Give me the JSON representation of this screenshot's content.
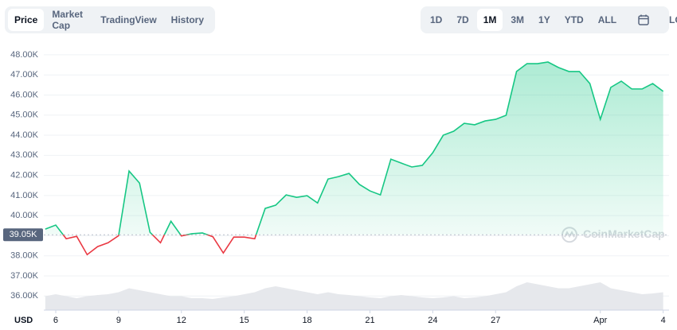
{
  "tabs": [
    "Price",
    "Market Cap",
    "TradingView",
    "History"
  ],
  "ranges": [
    "1D",
    "7D",
    "1M",
    "3M",
    "1Y",
    "YTD",
    "ALL"
  ],
  "scale_toggle": "LOG",
  "chart_data": {
    "type": "line",
    "currency": "USD",
    "watermark": "CoinMarketCap",
    "x": [
      5.5,
      6,
      6.5,
      7,
      7.5,
      8,
      8.5,
      9,
      9.5,
      10,
      10.5,
      11,
      11.5,
      12,
      12.5,
      13,
      13.5,
      14,
      14.5,
      15,
      15.5,
      16,
      16.5,
      17,
      17.5,
      18,
      18.5,
      19,
      19.5,
      20,
      20.5,
      21,
      21.5,
      22,
      22.5,
      23,
      23.5,
      24,
      24.5,
      25,
      25.5,
      26,
      26.5,
      27,
      27.5,
      28,
      28.5,
      29,
      29.5,
      30,
      30.5,
      31,
      31.5,
      32,
      32.5,
      33,
      33.5,
      34,
      34.5,
      35
    ],
    "values": [
      39330,
      39530,
      38850,
      38970,
      38060,
      38460,
      38650,
      39000,
      42220,
      41620,
      39170,
      38650,
      39720,
      38990,
      39100,
      39140,
      38950,
      38140,
      38930,
      38930,
      38850,
      40360,
      40520,
      41030,
      40910,
      40990,
      40630,
      41820,
      41940,
      42100,
      41550,
      41230,
      41030,
      42810,
      42610,
      42420,
      42500,
      43130,
      44000,
      44200,
      44590,
      44520,
      44710,
      44790,
      44990,
      47170,
      47560,
      47560,
      47640,
      47370,
      47170,
      47170,
      46570,
      44790,
      46380,
      46690,
      46300,
      46300,
      46570,
      46180
    ],
    "baseline": {
      "value": 39050,
      "label": "39.05K"
    },
    "up_color": "#16c784",
    "down_color": "#ea3943",
    "volume": {
      "axis": "y2",
      "color": "#e6e8ec",
      "values": [
        35,
        40,
        35,
        30,
        35,
        38,
        40,
        45,
        55,
        50,
        45,
        40,
        35,
        35,
        30,
        30,
        28,
        32,
        35,
        40,
        45,
        55,
        60,
        55,
        50,
        45,
        40,
        45,
        40,
        38,
        35,
        32,
        30,
        35,
        38,
        35,
        32,
        30,
        32,
        35,
        30,
        32,
        35,
        40,
        45,
        60,
        70,
        65,
        60,
        55,
        55,
        60,
        65,
        70,
        55,
        50,
        45,
        40,
        42,
        45
      ]
    },
    "xlim": [
      5.43,
      35.28
    ],
    "xticks": [
      6,
      9,
      12,
      15,
      18,
      21,
      24,
      27,
      {
        "value": 32,
        "label": "Apr"
      },
      {
        "value": 35,
        "label": "4"
      }
    ],
    "ylim": [
      35300,
      48550
    ],
    "yticks": [
      {
        "value": 36000,
        "label": "36.00K"
      },
      {
        "value": 37000,
        "label": "37.00K"
      },
      {
        "value": 38000,
        "label": "38.00K"
      },
      {
        "value": 39000,
        "label": "39.00K"
      },
      {
        "value": 40000,
        "label": "40.00K"
      },
      {
        "value": 41000,
        "label": "41.00K"
      },
      {
        "value": 42000,
        "label": "42.00K"
      },
      {
        "value": 43000,
        "label": "43.00K"
      },
      {
        "value": 44000,
        "label": "44.00K"
      },
      {
        "value": 45000,
        "label": "45.00K"
      },
      {
        "value": 46000,
        "label": "46.00K"
      },
      {
        "value": 47000,
        "label": "47.00K"
      },
      {
        "value": 48000,
        "label": "48.00K"
      }
    ],
    "y2lim": [
      0,
      100
    ],
    "grid": true,
    "log_scale": false
  }
}
